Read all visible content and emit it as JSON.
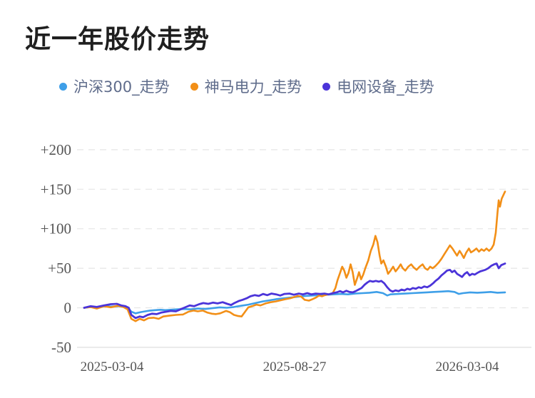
{
  "title": "近一年股价走势",
  "legend": [
    {
      "label": "沪深300_走势",
      "color": "#3E9FE8"
    },
    {
      "label": "神马电力_走势",
      "color": "#F28F17"
    },
    {
      "label": "电网设备_走势",
      "color": "#4B34D9"
    }
  ],
  "chart_data": {
    "type": "line",
    "title": "近一年股价走势",
    "xlabel": "",
    "ylabel": "",
    "ylim": [
      -50,
      200
    ],
    "y_ticks": [
      200,
      150,
      100,
      50,
      0,
      -50
    ],
    "y_tick_labels": [
      "+200",
      "+150",
      "+100",
      "+50",
      "0",
      "-50"
    ],
    "x_tick_labels": [
      "2025-03-04",
      "2025-08-27",
      "2026-03-04"
    ],
    "grid": "horizontal dashed",
    "legend_position": "top",
    "series": [
      {
        "name": "沪深300_走势",
        "color": "#3E9FE8",
        "points": [
          [
            0.0,
            0
          ],
          [
            0.015,
            1
          ],
          [
            0.03,
            0
          ],
          [
            0.047,
            2
          ],
          [
            0.063,
            1.5
          ],
          [
            0.08,
            2
          ],
          [
            0.093,
            1
          ],
          [
            0.104,
            0
          ],
          [
            0.112,
            -5
          ],
          [
            0.122,
            -7
          ],
          [
            0.134,
            -5.5
          ],
          [
            0.145,
            -4.5
          ],
          [
            0.157,
            -3.5
          ],
          [
            0.169,
            -3
          ],
          [
            0.181,
            -2.5
          ],
          [
            0.193,
            -3
          ],
          [
            0.205,
            -2.5
          ],
          [
            0.22,
            -2
          ],
          [
            0.237,
            -1.5
          ],
          [
            0.254,
            -2
          ],
          [
            0.271,
            -1
          ],
          [
            0.288,
            -1.5
          ],
          [
            0.305,
            -0.5
          ],
          [
            0.322,
            0.5
          ],
          [
            0.339,
            0
          ],
          [
            0.356,
            1
          ],
          [
            0.373,
            2.5
          ],
          [
            0.39,
            4
          ],
          [
            0.407,
            6
          ],
          [
            0.424,
            8
          ],
          [
            0.441,
            9.5
          ],
          [
            0.458,
            11
          ],
          [
            0.475,
            12
          ],
          [
            0.492,
            13
          ],
          [
            0.508,
            14
          ],
          [
            0.525,
            15
          ],
          [
            0.542,
            15.5
          ],
          [
            0.559,
            16
          ],
          [
            0.576,
            16.5
          ],
          [
            0.593,
            17
          ],
          [
            0.61,
            17.5
          ],
          [
            0.627,
            17
          ],
          [
            0.644,
            18
          ],
          [
            0.661,
            18.5
          ],
          [
            0.678,
            19
          ],
          [
            0.695,
            20
          ],
          [
            0.71,
            18.5
          ],
          [
            0.72,
            15.5
          ],
          [
            0.728,
            17
          ],
          [
            0.746,
            17.5
          ],
          [
            0.763,
            18
          ],
          [
            0.78,
            18.5
          ],
          [
            0.797,
            19
          ],
          [
            0.814,
            19.5
          ],
          [
            0.831,
            20
          ],
          [
            0.848,
            20.5
          ],
          [
            0.865,
            21
          ],
          [
            0.88,
            20
          ],
          [
            0.89,
            17.5
          ],
          [
            0.9,
            18.5
          ],
          [
            0.917,
            19.5
          ],
          [
            0.934,
            19
          ],
          [
            0.95,
            19.5
          ],
          [
            0.966,
            20
          ],
          [
            0.982,
            19
          ],
          [
            1.0,
            19.5
          ]
        ]
      },
      {
        "name": "神马电力_走势",
        "color": "#F28F17",
        "points": [
          [
            0.0,
            0
          ],
          [
            0.015,
            1
          ],
          [
            0.03,
            -1
          ],
          [
            0.047,
            2
          ],
          [
            0.063,
            0.5
          ],
          [
            0.08,
            2.5
          ],
          [
            0.093,
            1
          ],
          [
            0.103,
            -2
          ],
          [
            0.112,
            -14
          ],
          [
            0.122,
            -17
          ],
          [
            0.132,
            -14
          ],
          [
            0.142,
            -16
          ],
          [
            0.153,
            -13
          ],
          [
            0.165,
            -12.5
          ],
          [
            0.177,
            -14
          ],
          [
            0.188,
            -11
          ],
          [
            0.202,
            -10
          ],
          [
            0.218,
            -9
          ],
          [
            0.235,
            -8.5
          ],
          [
            0.248,
            -5
          ],
          [
            0.26,
            -3.5
          ],
          [
            0.27,
            -4.5
          ],
          [
            0.282,
            -3.5
          ],
          [
            0.292,
            -6
          ],
          [
            0.303,
            -7.5
          ],
          [
            0.313,
            -8
          ],
          [
            0.323,
            -7
          ],
          [
            0.337,
            -4
          ],
          [
            0.346,
            -5.5
          ],
          [
            0.356,
            -9
          ],
          [
            0.366,
            -10.5
          ],
          [
            0.374,
            -11
          ],
          [
            0.381,
            -6
          ],
          [
            0.39,
            0.5
          ],
          [
            0.399,
            2
          ],
          [
            0.409,
            4
          ],
          [
            0.419,
            3
          ],
          [
            0.431,
            5.5
          ],
          [
            0.443,
            7
          ],
          [
            0.455,
            8
          ],
          [
            0.467,
            9.5
          ],
          [
            0.479,
            11
          ],
          [
            0.489,
            12
          ],
          [
            0.499,
            13.5
          ],
          [
            0.508,
            15
          ],
          [
            0.516,
            14
          ],
          [
            0.524,
            10
          ],
          [
            0.534,
            9
          ],
          [
            0.543,
            11
          ],
          [
            0.551,
            13
          ],
          [
            0.558,
            15.5
          ],
          [
            0.565,
            14.5
          ],
          [
            0.572,
            16
          ],
          [
            0.58,
            17
          ],
          [
            0.59,
            18
          ],
          [
            0.597,
            25
          ],
          [
            0.602,
            35
          ],
          [
            0.608,
            44
          ],
          [
            0.613,
            52
          ],
          [
            0.618,
            47
          ],
          [
            0.623,
            38
          ],
          [
            0.628,
            44
          ],
          [
            0.633,
            55
          ],
          [
            0.638,
            45
          ],
          [
            0.643,
            29
          ],
          [
            0.649,
            38
          ],
          [
            0.653,
            45
          ],
          [
            0.658,
            36
          ],
          [
            0.663,
            42
          ],
          [
            0.668,
            50
          ],
          [
            0.675,
            60
          ],
          [
            0.681,
            72
          ],
          [
            0.687,
            80
          ],
          [
            0.692,
            91
          ],
          [
            0.697,
            83
          ],
          [
            0.702,
            66
          ],
          [
            0.706,
            56
          ],
          [
            0.711,
            60
          ],
          [
            0.717,
            52
          ],
          [
            0.722,
            43
          ],
          [
            0.728,
            47
          ],
          [
            0.734,
            52
          ],
          [
            0.74,
            46
          ],
          [
            0.746,
            50
          ],
          [
            0.752,
            55
          ],
          [
            0.757,
            50
          ],
          [
            0.763,
            47
          ],
          [
            0.77,
            52
          ],
          [
            0.777,
            55
          ],
          [
            0.783,
            51
          ],
          [
            0.79,
            48
          ],
          [
            0.797,
            52
          ],
          [
            0.804,
            55
          ],
          [
            0.81,
            50
          ],
          [
            0.816,
            48
          ],
          [
            0.822,
            52
          ],
          [
            0.828,
            50
          ],
          [
            0.835,
            53
          ],
          [
            0.842,
            57
          ],
          [
            0.849,
            62
          ],
          [
            0.856,
            68
          ],
          [
            0.862,
            73
          ],
          [
            0.869,
            79
          ],
          [
            0.875,
            75
          ],
          [
            0.881,
            70
          ],
          [
            0.886,
            66
          ],
          [
            0.892,
            72
          ],
          [
            0.897,
            68
          ],
          [
            0.902,
            63
          ],
          [
            0.908,
            70
          ],
          [
            0.914,
            75
          ],
          [
            0.919,
            70
          ],
          [
            0.925,
            72
          ],
          [
            0.932,
            75
          ],
          [
            0.938,
            71
          ],
          [
            0.944,
            74
          ],
          [
            0.95,
            72
          ],
          [
            0.956,
            75
          ],
          [
            0.962,
            72
          ],
          [
            0.968,
            75
          ],
          [
            0.973,
            80
          ],
          [
            0.978,
            95
          ],
          [
            0.982,
            120
          ],
          [
            0.985,
            136
          ],
          [
            0.988,
            128
          ],
          [
            0.992,
            138
          ],
          [
            1.0,
            147
          ]
        ]
      },
      {
        "name": "电网设备_走势",
        "color": "#4B34D9",
        "points": [
          [
            0.0,
            0
          ],
          [
            0.015,
            2
          ],
          [
            0.03,
            1
          ],
          [
            0.047,
            3
          ],
          [
            0.063,
            4.5
          ],
          [
            0.078,
            5
          ],
          [
            0.088,
            3
          ],
          [
            0.098,
            2
          ],
          [
            0.106,
            0
          ],
          [
            0.112,
            -9
          ],
          [
            0.122,
            -13
          ],
          [
            0.132,
            -11
          ],
          [
            0.14,
            -12
          ],
          [
            0.151,
            -9
          ],
          [
            0.161,
            -7.5
          ],
          [
            0.172,
            -8
          ],
          [
            0.184,
            -6
          ],
          [
            0.195,
            -5
          ],
          [
            0.206,
            -4
          ],
          [
            0.218,
            -4.5
          ],
          [
            0.229,
            -2
          ],
          [
            0.24,
            0.5
          ],
          [
            0.251,
            3
          ],
          [
            0.261,
            2
          ],
          [
            0.273,
            4.5
          ],
          [
            0.283,
            6
          ],
          [
            0.295,
            5
          ],
          [
            0.306,
            6.5
          ],
          [
            0.317,
            5.5
          ],
          [
            0.329,
            7
          ],
          [
            0.34,
            5
          ],
          [
            0.349,
            3.5
          ],
          [
            0.357,
            6
          ],
          [
            0.367,
            8.5
          ],
          [
            0.376,
            10
          ],
          [
            0.386,
            12
          ],
          [
            0.395,
            14.5
          ],
          [
            0.405,
            16
          ],
          [
            0.415,
            15
          ],
          [
            0.425,
            17.5
          ],
          [
            0.435,
            16
          ],
          [
            0.445,
            18
          ],
          [
            0.456,
            17
          ],
          [
            0.466,
            15.5
          ],
          [
            0.476,
            17.5
          ],
          [
            0.488,
            18
          ],
          [
            0.498,
            16.5
          ],
          [
            0.51,
            18
          ],
          [
            0.52,
            17
          ],
          [
            0.53,
            18.5
          ],
          [
            0.54,
            17
          ],
          [
            0.55,
            18
          ],
          [
            0.561,
            17.5
          ],
          [
            0.571,
            18
          ],
          [
            0.581,
            17
          ],
          [
            0.591,
            18.5
          ],
          [
            0.6,
            19.5
          ],
          [
            0.608,
            21
          ],
          [
            0.615,
            19.5
          ],
          [
            0.623,
            21.5
          ],
          [
            0.63,
            20
          ],
          [
            0.638,
            19.5
          ],
          [
            0.645,
            21
          ],
          [
            0.652,
            23
          ],
          [
            0.659,
            25
          ],
          [
            0.666,
            29
          ],
          [
            0.673,
            32
          ],
          [
            0.679,
            34
          ],
          [
            0.686,
            33
          ],
          [
            0.693,
            34
          ],
          [
            0.7,
            33
          ],
          [
            0.706,
            34
          ],
          [
            0.713,
            31
          ],
          [
            0.72,
            26
          ],
          [
            0.727,
            22
          ],
          [
            0.733,
            20.5
          ],
          [
            0.74,
            22
          ],
          [
            0.747,
            21
          ],
          [
            0.754,
            23
          ],
          [
            0.761,
            22
          ],
          [
            0.768,
            24
          ],
          [
            0.774,
            23
          ],
          [
            0.781,
            25
          ],
          [
            0.788,
            24
          ],
          [
            0.795,
            26
          ],
          [
            0.801,
            25
          ],
          [
            0.808,
            27
          ],
          [
            0.815,
            26
          ],
          [
            0.822,
            28
          ],
          [
            0.829,
            31
          ],
          [
            0.835,
            34
          ],
          [
            0.842,
            37
          ],
          [
            0.849,
            41
          ],
          [
            0.856,
            44
          ],
          [
            0.862,
            47
          ],
          [
            0.869,
            48
          ],
          [
            0.874,
            45
          ],
          [
            0.88,
            47
          ],
          [
            0.886,
            43
          ],
          [
            0.892,
            41
          ],
          [
            0.898,
            39
          ],
          [
            0.904,
            43
          ],
          [
            0.91,
            45
          ],
          [
            0.916,
            41
          ],
          [
            0.922,
            43
          ],
          [
            0.928,
            42
          ],
          [
            0.934,
            44
          ],
          [
            0.941,
            46
          ],
          [
            0.947,
            47
          ],
          [
            0.953,
            48
          ],
          [
            0.96,
            50
          ],
          [
            0.967,
            53
          ],
          [
            0.974,
            55
          ],
          [
            0.98,
            56
          ],
          [
            0.985,
            50
          ],
          [
            0.991,
            54
          ],
          [
            1.0,
            56
          ]
        ]
      }
    ]
  }
}
